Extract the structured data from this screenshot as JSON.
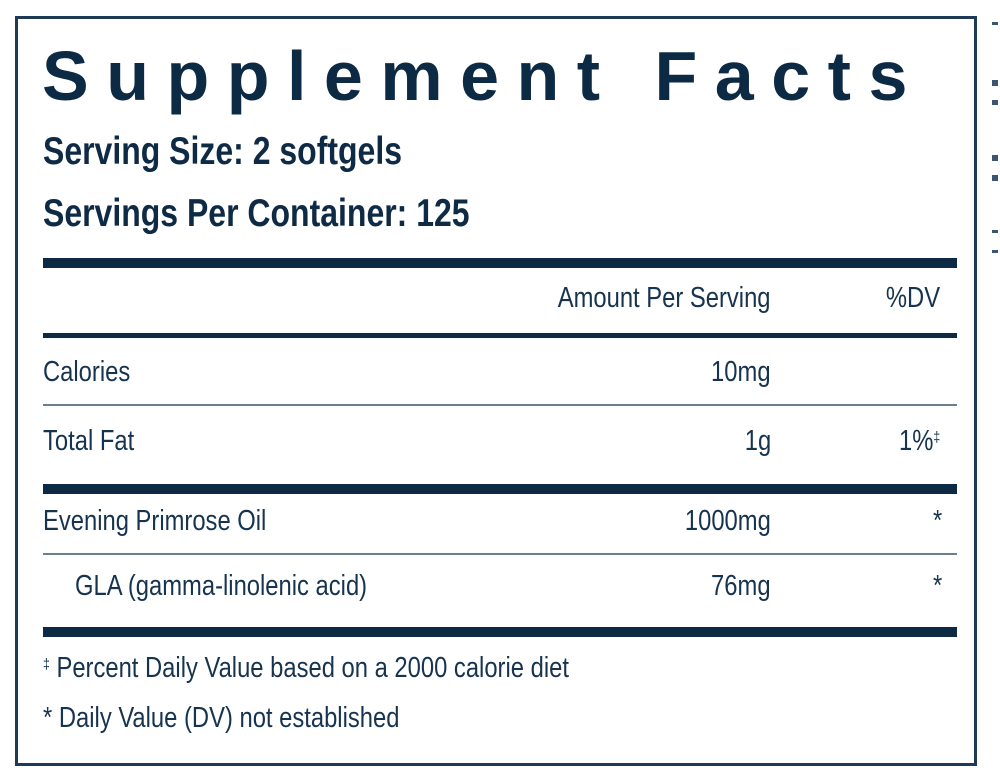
{
  "title": "Supplement Facts",
  "serving_size": "Serving Size: 2 softgels",
  "servings_per_container": "Servings Per Container: 125",
  "table": {
    "header": {
      "amount": "Amount Per Serving",
      "dv": "%DV"
    },
    "rows": [
      {
        "name": "Calories",
        "amount": "10mg",
        "dv": ""
      },
      {
        "name": "Total Fat",
        "amount": "1g",
        "dv": "1%",
        "dv_mark": "‡"
      },
      {
        "name": "Evening Primrose Oil",
        "amount": "1000mg",
        "dv": "*"
      },
      {
        "name": "GLA (gamma-linolenic acid)",
        "amount": "76mg",
        "dv": "*"
      }
    ]
  },
  "footnotes": {
    "dagger_mark": "‡",
    "dagger": "Percent Daily Value based on a 2000 calorie diet",
    "asterisk": "* Daily Value (DV) not established"
  },
  "colors": {
    "text": "#0d2a45",
    "border": "#1e3a55"
  }
}
